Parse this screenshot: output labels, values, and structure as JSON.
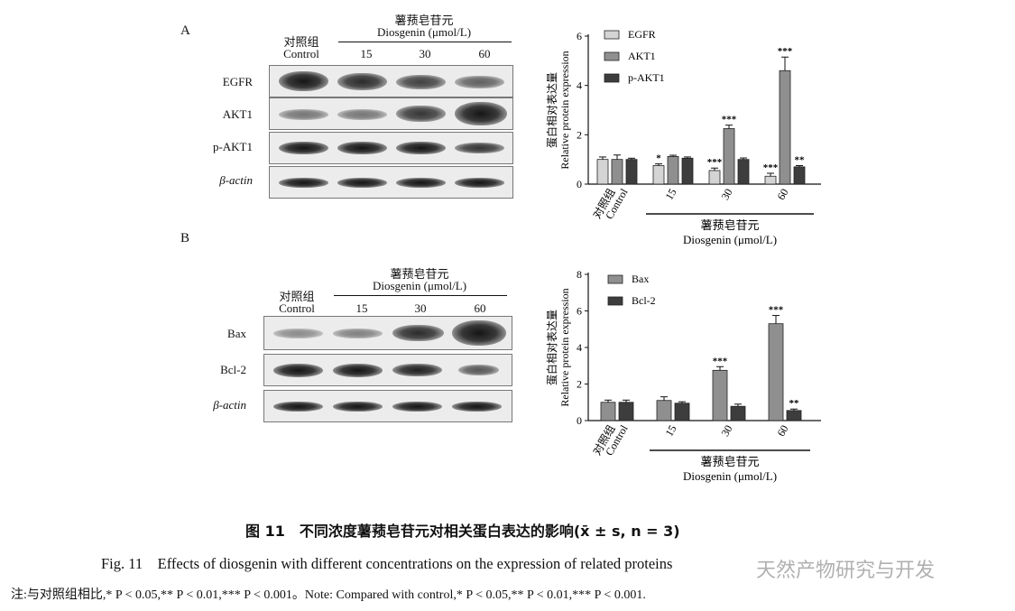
{
  "panels": {
    "a_label": "A",
    "b_label": "B"
  },
  "blot_a": {
    "control_cn": "对照组",
    "control_en": "Control",
    "treat_cn": "薯蓣皂苷元",
    "treat_en": "Diosgenin (μmol/L)",
    "lanes": [
      "15",
      "30",
      "60"
    ],
    "rows": [
      "EGFR",
      "AKT1",
      "p-AKT1",
      "β-actin"
    ]
  },
  "blot_b": {
    "control_cn": "对照组",
    "control_en": "Control",
    "treat_cn": "薯蓣皂苷元",
    "treat_en": "Diosgenin (μmol/L)",
    "lanes": [
      "15",
      "30",
      "60"
    ],
    "rows": [
      "Bax",
      "Bcl-2",
      "β-actin"
    ]
  },
  "chart_data": [
    {
      "type": "bar",
      "panel": "A",
      "categories": [
        "对照组 Control",
        "15",
        "30",
        "60"
      ],
      "category_labels": [
        {
          "cn": "对照组",
          "en": "Control"
        },
        {
          "cn": "",
          "en": "15"
        },
        {
          "cn": "",
          "en": "30"
        },
        {
          "cn": "",
          "en": "60"
        }
      ],
      "series": [
        {
          "name": "EGFR",
          "color": "#d4d4d4",
          "values": [
            1.0,
            0.75,
            0.55,
            0.32
          ],
          "errors": [
            0.1,
            0.07,
            0.1,
            0.12
          ],
          "sig": [
            "",
            "*",
            "***",
            "***"
          ]
        },
        {
          "name": "AKT1",
          "color": "#8f8f8f",
          "values": [
            1.0,
            1.12,
            2.25,
            4.6
          ],
          "errors": [
            0.18,
            0.05,
            0.14,
            0.55
          ],
          "sig": [
            "",
            "",
            "***",
            "***"
          ]
        },
        {
          "name": "p-AKT1",
          "color": "#3d3d3d",
          "values": [
            1.0,
            1.05,
            1.0,
            0.7
          ],
          "errors": [
            0.05,
            0.05,
            0.06,
            0.05
          ],
          "sig": [
            "",
            "",
            "",
            "**"
          ]
        }
      ],
      "ylim": [
        0,
        6
      ],
      "yticks": [
        0,
        2,
        4,
        6
      ],
      "ylabel_cn": "蛋白相对表达量",
      "ylabel_en": "Relative protein expression",
      "xlabel_cn": "薯蓣皂苷元",
      "xlabel_en": "Diosgenin (μmol/L)",
      "legend_position": "top-left"
    },
    {
      "type": "bar",
      "panel": "B",
      "categories": [
        "对照组 Control",
        "15",
        "30",
        "60"
      ],
      "category_labels": [
        {
          "cn": "对照组",
          "en": "Control"
        },
        {
          "cn": "",
          "en": "15"
        },
        {
          "cn": "",
          "en": "30"
        },
        {
          "cn": "",
          "en": "60"
        }
      ],
      "series": [
        {
          "name": "Bax",
          "color": "#8f8f8f",
          "values": [
            1.0,
            1.1,
            2.75,
            5.3
          ],
          "errors": [
            0.12,
            0.2,
            0.2,
            0.45
          ],
          "sig": [
            "",
            "",
            "***",
            "***"
          ]
        },
        {
          "name": "Bcl-2",
          "color": "#3d3d3d",
          "values": [
            1.0,
            0.95,
            0.78,
            0.55
          ],
          "errors": [
            0.12,
            0.08,
            0.12,
            0.08
          ],
          "sig": [
            "",
            "",
            "",
            "**"
          ]
        }
      ],
      "ylim": [
        0,
        8
      ],
      "yticks": [
        0,
        2,
        4,
        6,
        8
      ],
      "ylabel_cn": "蛋白相对表达量",
      "ylabel_en": "Relative protein expression",
      "xlabel_cn": "薯蓣皂苷元",
      "xlabel_en": "Diosgenin (μmol/L)",
      "legend_position": "top-left"
    }
  ],
  "caption": {
    "cn": "图 11　不同浓度薯蓣皂苷元对相关蛋白表达的影响(x̄ ± s, n = 3)",
    "en": "Fig. 11　Effects of diosgenin with different concentrations on the expression of related proteins",
    "note": "注:与对照组相比,* P < 0.05,** P < 0.01,*** P < 0.001。Note: Compared with control,* P < 0.05,** P < 0.01,*** P < 0.001."
  },
  "watermark": "天然产物研究与开发"
}
